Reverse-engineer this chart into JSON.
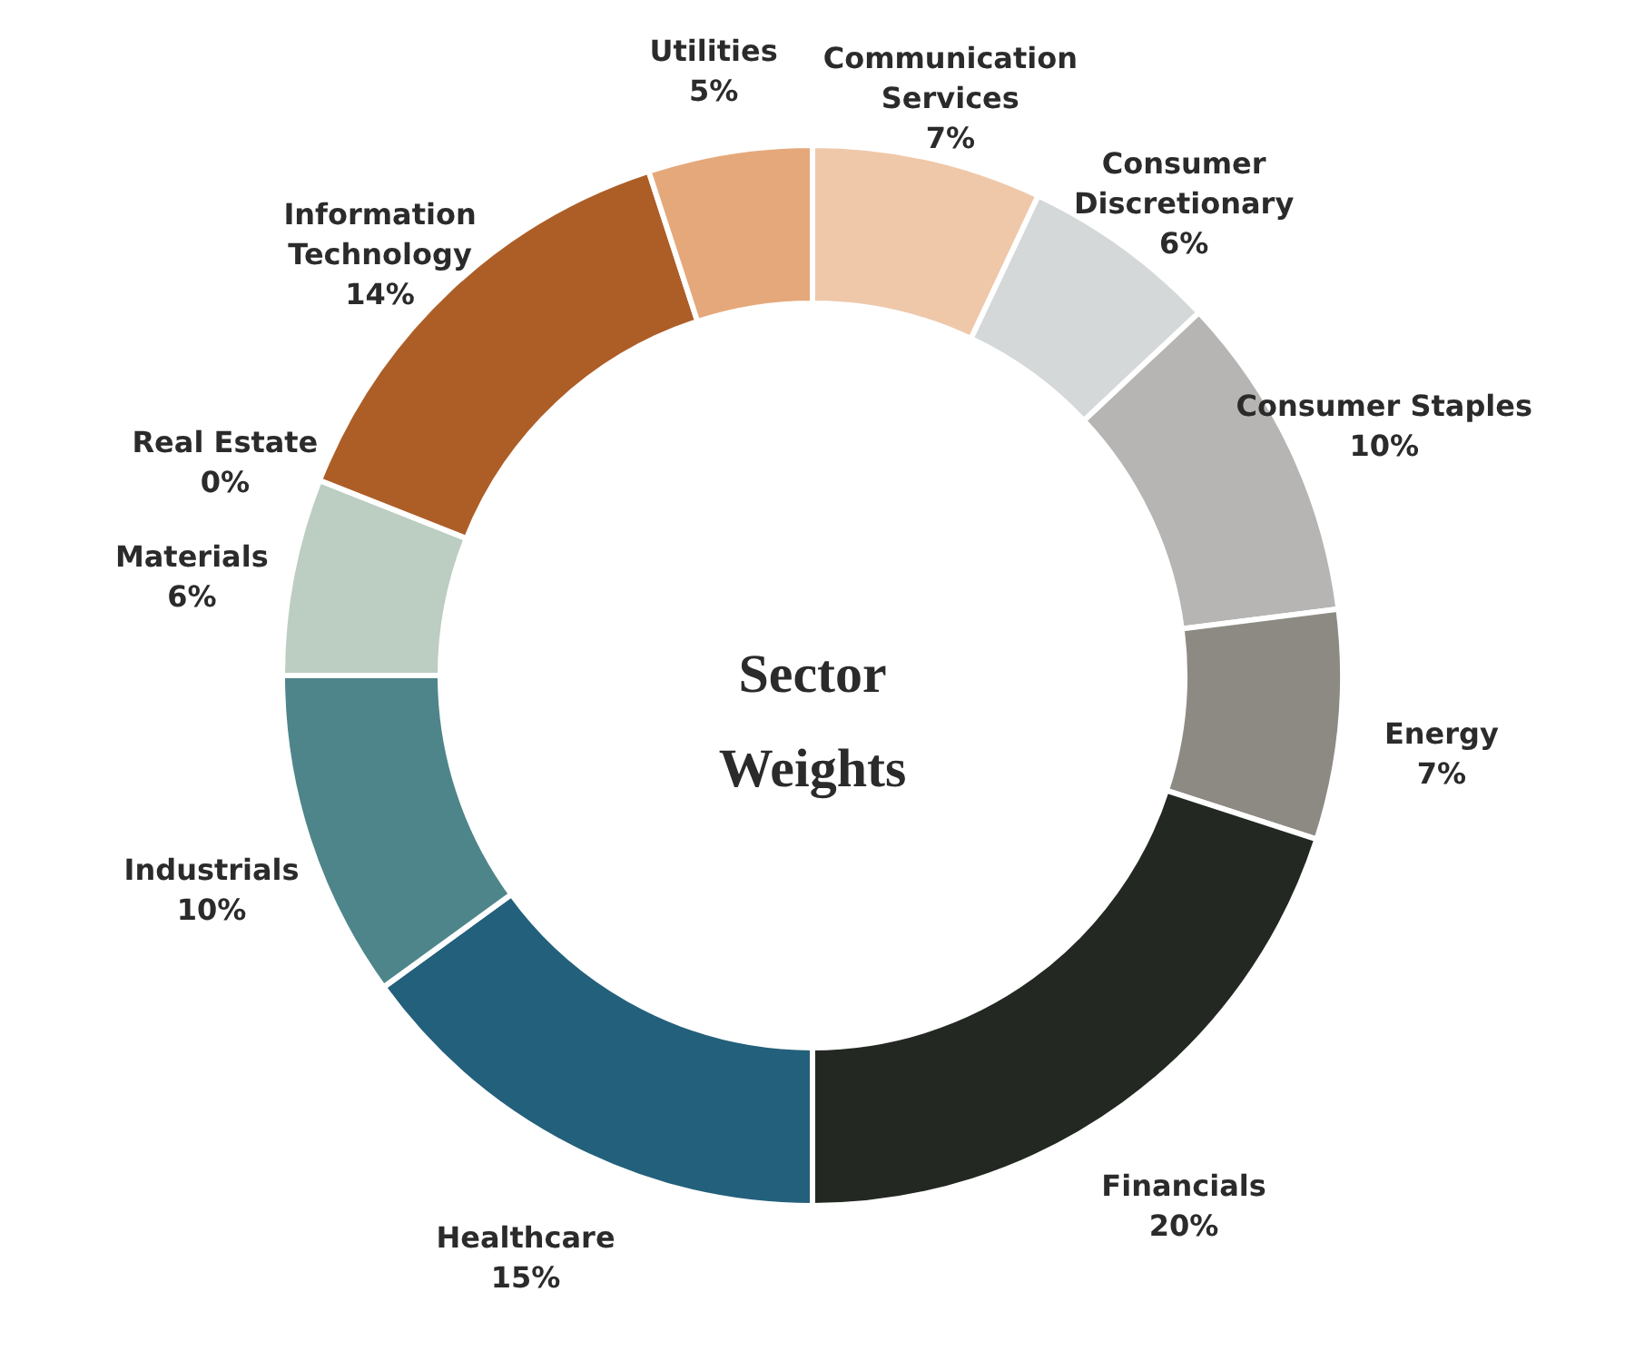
{
  "chart_data": {
    "type": "donut",
    "title": "Sector Weights",
    "categories": [
      "Communication Services",
      "Consumer Discretionary",
      "Consumer Staples",
      "Energy",
      "Financials",
      "Healthcare",
      "Industrials",
      "Materials",
      "Real Estate",
      "Information Technology",
      "Utilities"
    ],
    "values": [
      7,
      6,
      10,
      7,
      20,
      15,
      10,
      6,
      0,
      14,
      5
    ],
    "value_labels": [
      "7%",
      "6%",
      "10%",
      "7%",
      "20%",
      "15%",
      "10%",
      "6%",
      "0%",
      "14%",
      "5%"
    ],
    "colors": [
      "#efc8aa",
      "#d5d8d9",
      "#b6b5b3",
      "#8d8a84",
      "#232822",
      "#23607b",
      "#4e858a",
      "#bccdc1",
      "#9aa7a0",
      "#ad5e27",
      "#e5a87a"
    ]
  }
}
